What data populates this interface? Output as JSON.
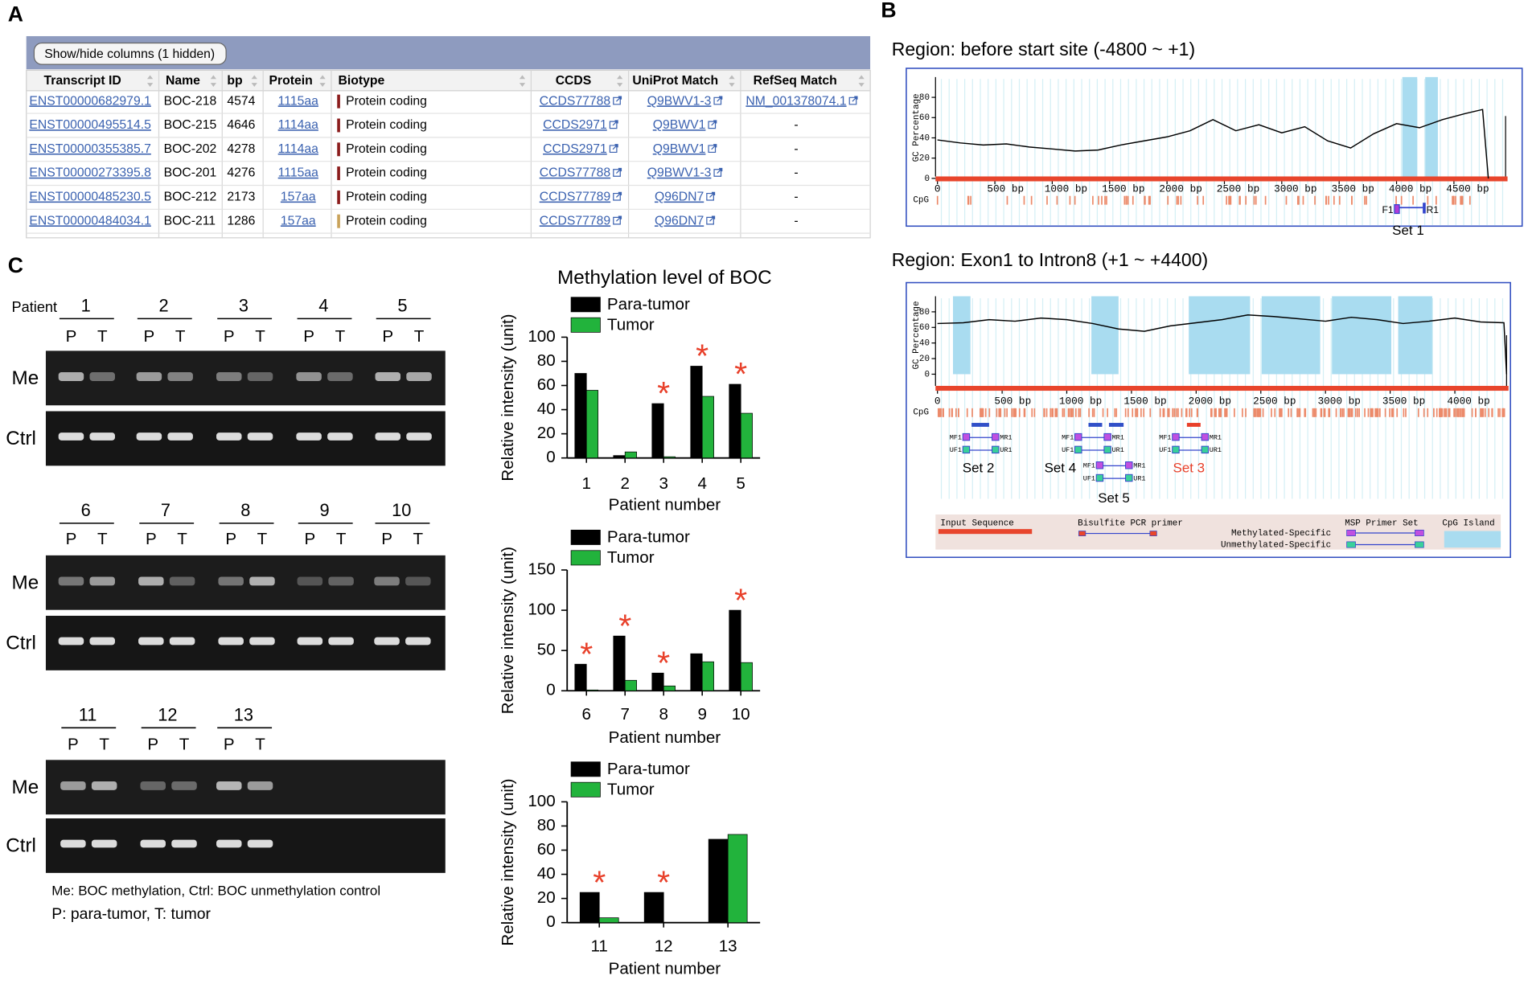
{
  "panel_labels": [
    "A",
    "B",
    "C"
  ],
  "panels": {
    "A": {
      "button": "Show/hide columns (1 hidden)",
      "table": {
        "headers": [
          "Transcript ID",
          "Name",
          "bp",
          "Protein",
          "Biotype",
          "CCDS",
          "UniProt Match",
          "RefSeq Match"
        ],
        "rows": [
          [
            "ENST00000682979.1",
            "BOC-218",
            4574,
            "1115aa",
            "Protein coding",
            "CCDS77788",
            "Q9BWV1-3",
            "NM_001378074.1"
          ],
          [
            "ENST00000495514.5",
            "BOC-215",
            4646,
            "1114aa",
            "Protein coding",
            "CCDS2971",
            "Q9BWV1",
            "-"
          ],
          [
            "ENST00000355385.7",
            "BOC-202",
            4278,
            "1114aa",
            "Protein coding",
            "CCDS2971",
            "Q9BWV1",
            "-"
          ],
          [
            "ENST00000273395.8",
            "BOC-201",
            4276,
            "1115aa",
            "Protein coding",
            "CCDS77788",
            "Q9BWV1-3",
            "-"
          ],
          [
            "ENST00000485230.5",
            "BOC-212",
            2173,
            "157aa",
            "Protein coding",
            "CCDS77789",
            "Q96DN7",
            "-"
          ],
          [
            "ENST00000484034.1",
            "BOC-211",
            1286,
            "157aa",
            "Protein coding",
            "CCDS77789",
            "Q96DN7",
            "-"
          ]
        ],
        "biotype_colors": [
          "#8b1c1c",
          "#8b1c1c",
          "#8b1c1c",
          "#8b1c1c",
          "#8b1c1c",
          "#c9a25a"
        ]
      }
    },
    "B": {
      "set1": {
        "primers": [
          "F1",
          "R1"
        ],
        "label": "Set 1"
      },
      "msp_primer_labels": [
        "MF1",
        "MR1",
        "UF1",
        "UR1"
      ],
      "primer_sets": [
        {
          "label": "Set 2",
          "color": "#000000"
        },
        {
          "label": "Set 4",
          "color": "#000000"
        },
        {
          "label": "Set 3",
          "color": "#e8402a"
        },
        {
          "label": "Set 5",
          "color": "#000000"
        }
      ],
      "legend": {
        "input_sequence": "Input Sequence",
        "bisulfite_pcr_primer": "Bisulfite PCR primer",
        "msp_primer_set": "MSP Primer Set",
        "methylated_specific": "Methylated-Specific",
        "unmethylated_specific": "Unmethylated-Specific",
        "cpg_island": "CpG Island"
      }
    },
    "C": {
      "patient_label": "Patient",
      "gel_groups": [
        [
          1,
          2,
          3,
          4,
          5
        ],
        [
          6,
          7,
          8,
          9,
          10
        ],
        [
          11,
          12,
          13
        ]
      ],
      "lane_labels": [
        "P",
        "T"
      ],
      "row_labels": [
        "Me",
        "Ctrl"
      ],
      "captions": [
        "Me: BOC methylation, Ctrl: BOC unmethylation control",
        "P: para-tumor, T: tumor"
      ]
    }
  },
  "chart_data": [
    {
      "type": "line",
      "title": "Region: before start site (-4800 ~ +1)",
      "ylabel": "GC Percentage",
      "cpg_label": "CpG",
      "x": [
        0,
        200,
        400,
        600,
        800,
        1000,
        1200,
        1400,
        1600,
        1800,
        2000,
        2200,
        2400,
        2600,
        2800,
        3000,
        3200,
        3400,
        3600,
        3800,
        4000,
        4200,
        4400,
        4600,
        4750,
        4800
      ],
      "series": [
        {
          "color": "#000000",
          "values": [
            38,
            35,
            33,
            34,
            31,
            29,
            27,
            28,
            33,
            37,
            41,
            47,
            58,
            47,
            53,
            45,
            51,
            37,
            30,
            44,
            54,
            50,
            58,
            64,
            68,
            0
          ]
        }
      ],
      "cpg_islands": [
        [
          4050,
          4180
        ],
        [
          4250,
          4360
        ]
      ],
      "xlim": [
        0,
        4950
      ],
      "xticks": [
        0,
        {
          "value": 500,
          "label": "500 bp"
        },
        {
          "value": 1000,
          "label": "1000 bp"
        },
        {
          "value": 1500,
          "label": "1500 bp"
        },
        {
          "value": 2000,
          "label": "2000 bp"
        },
        {
          "value": 2500,
          "label": "2500 bp"
        },
        {
          "value": 3000,
          "label": "3000 bp"
        },
        {
          "value": 3500,
          "label": "3500 bp"
        },
        {
          "value": 4000,
          "label": "4000 bp"
        },
        {
          "value": 4500,
          "label": "4500 bp"
        }
      ],
      "ylim": [
        0,
        100
      ],
      "yticks": [
        0,
        20,
        40,
        60,
        80
      ]
    },
    {
      "type": "line",
      "title": "Region: Exon1 to Intron8 (+1 ~ +4400)",
      "ylabel": "GC Percentage",
      "cpg_label": "CpG",
      "x": [
        0,
        200,
        400,
        600,
        800,
        1000,
        1200,
        1400,
        1600,
        1800,
        2000,
        2200,
        2400,
        2600,
        2800,
        3000,
        3200,
        3400,
        3600,
        3800,
        4000,
        4200,
        4380,
        4400
      ],
      "series": [
        {
          "color": "#000000",
          "values": [
            65,
            66,
            70,
            68,
            72,
            70,
            65,
            58,
            55,
            62,
            66,
            70,
            76,
            74,
            71,
            68,
            73,
            70,
            65,
            68,
            72,
            67,
            66,
            0
          ]
        }
      ],
      "cpg_islands": [
        [
          120,
          255
        ],
        [
          1190,
          1400
        ],
        [
          1943,
          2417
        ],
        [
          2507,
          2959
        ],
        [
          3050,
          3509
        ],
        [
          3562,
          3825
        ]
      ],
      "xlim": [
        0,
        4400
      ],
      "xticks": [
        0,
        {
          "value": 500,
          "label": "500 bp"
        },
        {
          "value": 1000,
          "label": "1000 bp"
        },
        {
          "value": 1500,
          "label": "1500 bp"
        },
        {
          "value": 2000,
          "label": "2000 bp"
        },
        {
          "value": 2500,
          "label": "2500 bp"
        },
        {
          "value": 3000,
          "label": "3000 bp"
        },
        {
          "value": 3500,
          "label": "3500 bp"
        },
        {
          "value": 4000,
          "label": "4000 bp"
        }
      ],
      "ylim": [
        0,
        100
      ],
      "yticks": [
        0,
        20,
        40,
        60,
        80
      ]
    },
    {
      "type": "bar",
      "title": "Methylation level of BOC",
      "xlabel": "Patient number",
      "ylabel": "Relative intensity (unit)",
      "categories": [
        "1",
        "2",
        "3",
        "4",
        "5"
      ],
      "series": [
        {
          "name": "Para-tumor",
          "color": "#000000",
          "values": [
            70,
            2,
            45,
            76,
            61
          ]
        },
        {
          "name": "Tumor",
          "color": "#22b33c",
          "values": [
            56,
            5,
            1,
            51,
            37
          ]
        }
      ],
      "significance": [
        null,
        null,
        "*",
        "*",
        "*"
      ],
      "ylim": [
        0,
        100
      ],
      "yticks": [
        0,
        20,
        40,
        60,
        80,
        100
      ]
    },
    {
      "type": "bar",
      "xlabel": "Patient number",
      "ylabel": "Relative intensity (unit)",
      "categories": [
        "6",
        "7",
        "8",
        "9",
        "10"
      ],
      "series": [
        {
          "name": "Para-tumor",
          "color": "#000000",
          "values": [
            33,
            68,
            22,
            46,
            100
          ]
        },
        {
          "name": "Tumor",
          "color": "#22b33c",
          "values": [
            1,
            13,
            6,
            36,
            35
          ]
        }
      ],
      "significance": [
        "*",
        "*",
        "*",
        null,
        "*"
      ],
      "ylim": [
        0,
        150
      ],
      "yticks": [
        0,
        50,
        100,
        150
      ]
    },
    {
      "type": "bar",
      "xlabel": "Patient number",
      "ylabel": "Relative intensity (unit)",
      "categories": [
        "11",
        "12",
        "13"
      ],
      "series": [
        {
          "name": "Para-tumor",
          "color": "#000000",
          "values": [
            25,
            25,
            69
          ]
        },
        {
          "name": "Tumor",
          "color": "#22b33c",
          "values": [
            4,
            0,
            73
          ]
        }
      ],
      "significance": [
        "*",
        "*",
        null
      ],
      "ylim": [
        0,
        100
      ],
      "yticks": [
        0,
        20,
        40,
        60,
        80,
        100
      ]
    }
  ]
}
